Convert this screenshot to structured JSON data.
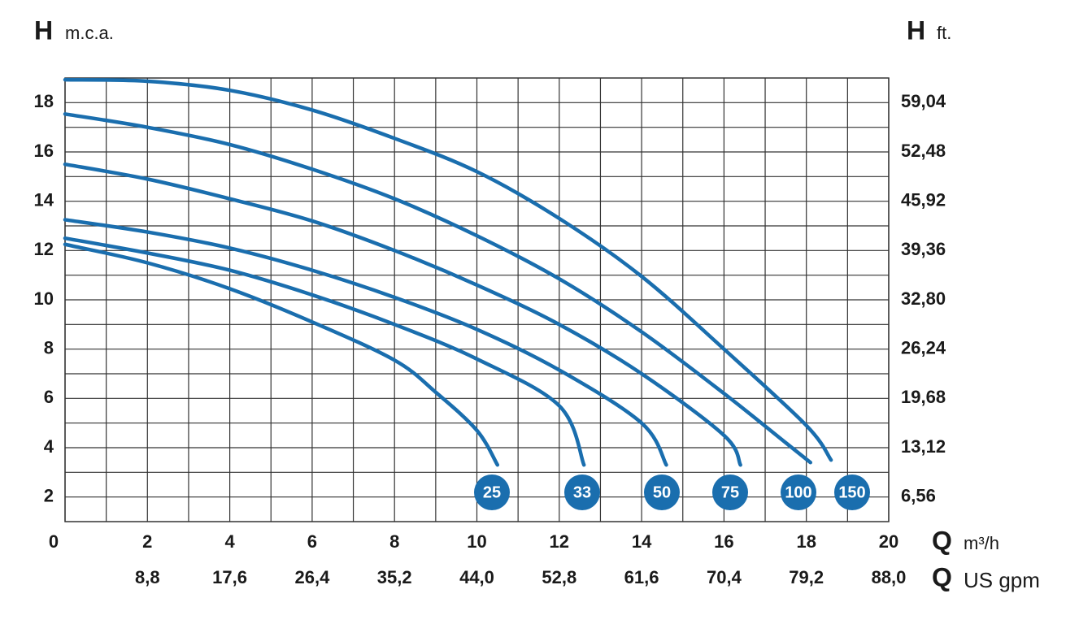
{
  "chart_data": {
    "type": "line",
    "y_label": {
      "symbol": "H",
      "unit": "m.c.a."
    },
    "y2_label": {
      "symbol": "H",
      "unit": "ft."
    },
    "x_label": {
      "symbol": "Q",
      "unit": "m³/h"
    },
    "x2_label": {
      "symbol": "Q",
      "unit": "US gpm"
    },
    "xlim": [
      0,
      20
    ],
    "xticks": [
      0,
      2,
      4,
      6,
      8,
      10,
      12,
      14,
      16,
      18,
      20
    ],
    "minor_xticks": [
      1,
      3,
      5,
      7,
      9,
      11,
      13,
      15,
      17,
      19
    ],
    "x2lim": [
      0,
      88
    ],
    "x2ticks": [
      {
        "value": 8.8,
        "label": "8,8"
      },
      {
        "value": 17.6,
        "label": "17,6"
      },
      {
        "value": 26.4,
        "label": "26,4"
      },
      {
        "value": 35.2,
        "label": "35,2"
      },
      {
        "value": 44.0,
        "label": "44,0"
      },
      {
        "value": 52.8,
        "label": "52,8"
      },
      {
        "value": 61.6,
        "label": "61,6"
      },
      {
        "value": 70.4,
        "label": "70,4"
      },
      {
        "value": 79.2,
        "label": "79,2"
      },
      {
        "value": 88.0,
        "label": "88,0"
      }
    ],
    "ylim": [
      1,
      19
    ],
    "yticks": [
      2,
      4,
      6,
      8,
      10,
      12,
      14,
      16,
      18
    ],
    "minor_yticks": [
      3,
      5,
      7,
      9,
      11,
      13,
      15,
      17
    ],
    "y2lim": [
      3.28,
      62.32
    ],
    "y2ticks": [
      {
        "value": 6.56,
        "label": "6,56"
      },
      {
        "value": 13.12,
        "label": "13,12"
      },
      {
        "value": 19.68,
        "label": "19,68"
      },
      {
        "value": 26.24,
        "label": "26,24"
      },
      {
        "value": 32.8,
        "label": "32,80"
      },
      {
        "value": 39.36,
        "label": "39,36"
      },
      {
        "value": 45.92,
        "label": "45,92"
      },
      {
        "value": 52.48,
        "label": "52,48"
      },
      {
        "value": 59.04,
        "label": "59,04"
      }
    ],
    "grid": true,
    "series": [
      {
        "name": "25",
        "color": "#1a6eae",
        "x": [
          0,
          2,
          4,
          6,
          8,
          9,
          10,
          10.5
        ],
        "values": [
          12.25,
          11.5,
          10.45,
          9.1,
          7.55,
          6.25,
          4.7,
          3.3
        ]
      },
      {
        "name": "33",
        "color": "#1a6eae",
        "x": [
          0,
          2,
          4,
          6,
          8,
          10,
          12,
          12.6
        ],
        "values": [
          12.5,
          11.9,
          11.2,
          10.2,
          9.0,
          7.6,
          5.7,
          3.3
        ]
      },
      {
        "name": "50",
        "color": "#1a6eae",
        "x": [
          0,
          2,
          4,
          6,
          8,
          10,
          12,
          14,
          14.6
        ],
        "values": [
          13.25,
          12.75,
          12.1,
          11.2,
          10.1,
          8.8,
          7.15,
          5.0,
          3.3
        ]
      },
      {
        "name": "75",
        "color": "#1a6eae",
        "x": [
          0,
          2,
          4,
          6,
          8,
          10,
          12,
          14,
          16,
          16.4
        ],
        "values": [
          15.5,
          14.9,
          14.1,
          13.2,
          12.0,
          10.6,
          9.0,
          7.0,
          4.5,
          3.3
        ]
      },
      {
        "name": "100",
        "color": "#1a6eae",
        "x": [
          0,
          2,
          4,
          6,
          8,
          10,
          12,
          14,
          16,
          17.5,
          18.1
        ],
        "values": [
          17.54,
          17.0,
          16.3,
          15.3,
          14.1,
          12.6,
          10.85,
          8.7,
          6.2,
          4.2,
          3.4
        ]
      },
      {
        "name": "150",
        "color": "#1a6eae",
        "x": [
          0,
          2,
          4,
          6,
          8,
          10,
          12,
          14,
          16,
          18,
          18.6
        ],
        "values": [
          18.93,
          18.87,
          18.5,
          17.7,
          16.55,
          15.2,
          13.3,
          10.95,
          8.0,
          4.9,
          3.5
        ]
      }
    ]
  }
}
